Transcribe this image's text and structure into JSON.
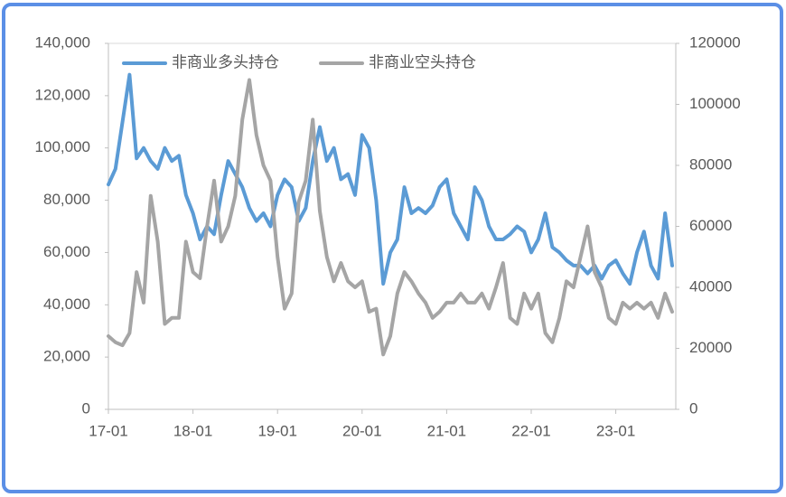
{
  "chart_data": {
    "type": "line",
    "x": [
      "17-01",
      null,
      null,
      null,
      null,
      null,
      null,
      null,
      null,
      null,
      null,
      null,
      "18-01",
      null,
      null,
      null,
      null,
      null,
      null,
      null,
      null,
      null,
      null,
      null,
      "19-01",
      null,
      null,
      null,
      null,
      null,
      null,
      null,
      null,
      null,
      null,
      null,
      "20-01",
      null,
      null,
      null,
      null,
      null,
      null,
      null,
      null,
      null,
      null,
      null,
      "21-01",
      null,
      null,
      null,
      null,
      null,
      null,
      null,
      null,
      null,
      null,
      null,
      "22-01",
      null,
      null,
      null,
      null,
      null,
      null,
      null,
      null,
      null,
      null,
      null,
      "23-01",
      null,
      null,
      null,
      null,
      null,
      null,
      null,
      null
    ],
    "series": [
      {
        "name": "非商业多头持仓",
        "color": "#5b9bd5",
        "axis": "y",
        "values": [
          86000,
          92000,
          110000,
          128000,
          96000,
          100000,
          95000,
          92000,
          100000,
          95000,
          97000,
          82000,
          75000,
          65000,
          70000,
          67000,
          82000,
          95000,
          90000,
          85000,
          77000,
          72000,
          75000,
          70000,
          82000,
          88000,
          85000,
          72000,
          77000,
          95000,
          108000,
          95000,
          100000,
          88000,
          90000,
          82000,
          105000,
          100000,
          80000,
          48000,
          60000,
          65000,
          85000,
          75000,
          77000,
          75000,
          78000,
          85000,
          88000,
          75000,
          70000,
          65000,
          85000,
          80000,
          70000,
          65000,
          65000,
          67000,
          70000,
          68000,
          60000,
          65000,
          75000,
          62000,
          60000,
          57000,
          55000,
          55000,
          52000,
          55000,
          50000,
          55000,
          57000,
          52000,
          48000,
          60000,
          68000,
          55000,
          50000,
          75000,
          55000
        ]
      },
      {
        "name": "非商业空头持仓",
        "color": "#a5a5a5",
        "axis": "y2",
        "values": [
          24000,
          22000,
          21000,
          25000,
          45000,
          35000,
          70000,
          55000,
          28000,
          30000,
          30000,
          55000,
          45000,
          43000,
          60000,
          75000,
          55000,
          60000,
          70000,
          95000,
          108000,
          90000,
          80000,
          75000,
          50000,
          33000,
          38000,
          68000,
          75000,
          95000,
          65000,
          50000,
          42000,
          48000,
          42000,
          40000,
          42000,
          32000,
          33000,
          18000,
          24000,
          38000,
          45000,
          42000,
          38000,
          35000,
          30000,
          32000,
          35000,
          35000,
          38000,
          35000,
          35000,
          38000,
          33000,
          40000,
          48000,
          30000,
          28000,
          38000,
          33000,
          38000,
          25000,
          22000,
          30000,
          42000,
          40000,
          50000,
          60000,
          45000,
          40000,
          30000,
          28000,
          35000,
          33000,
          35000,
          33000,
          35000,
          30000,
          38000,
          32000
        ]
      }
    ],
    "ylim": [
      0,
      140000
    ],
    "yticks": [
      0,
      {
        "value": 20000,
        "label": "20,000"
      },
      {
        "value": 40000,
        "label": "40,000"
      },
      {
        "value": 60000,
        "label": "60,000"
      },
      {
        "value": 80000,
        "label": "80,000"
      },
      {
        "value": 100000,
        "label": "100,000"
      },
      {
        "value": 120000,
        "label": "120,000"
      },
      {
        "value": 140000,
        "label": "140,000"
      }
    ],
    "y2lim": [
      0,
      120000
    ],
    "y2ticks": [
      0,
      20000,
      40000,
      60000,
      80000,
      100000,
      120000
    ],
    "grid": false,
    "legend": "top"
  }
}
